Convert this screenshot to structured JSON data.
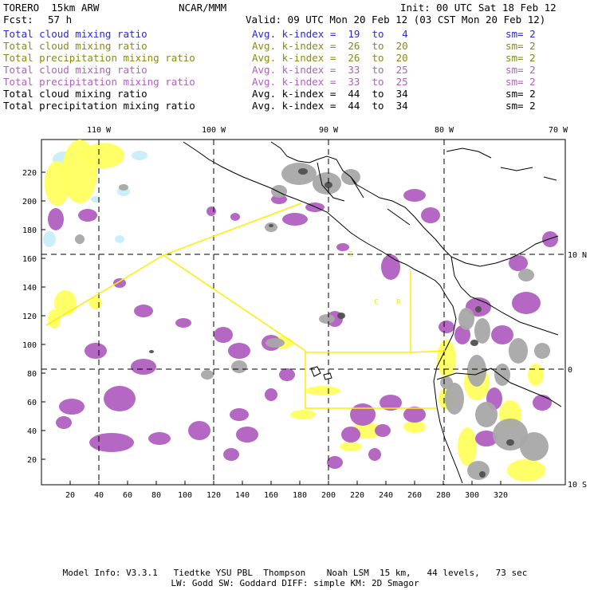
{
  "header": {
    "model": "TORERO  15km ARW",
    "agency": "NCAR/MMM",
    "init": "Init: 00 UTC Sat 18 Feb 12",
    "fcst_label": "Fcst:",
    "fcst_value": "57 h",
    "valid": "Valid: 09 UTC Mon 20 Feb 12 (03 CST Mon 20 Feb 12)"
  },
  "legend": [
    {
      "field": "Total cloud mixing ratio",
      "kindex": "Avg. k-index =  19  to   4",
      "sm": "sm= 2",
      "color": "#2a2ad0"
    },
    {
      "field": "Total cloud mixing ratio",
      "kindex": "Avg. k-index =  26  to  20",
      "sm": "sm= 2",
      "color": "#8a8a10"
    },
    {
      "field": "Total precipitation mixing ratio",
      "kindex": "Avg. k-index =  26  to  20",
      "sm": "sm= 2",
      "color": "#8a8a10"
    },
    {
      "field": "Total cloud mixing ratio",
      "kindex": "Avg. k-index =  33  to  25",
      "sm": "sm= 2",
      "color": "#b060c0"
    },
    {
      "field": "Total precipitation mixing ratio",
      "kindex": "Avg. k-index =  33  to  25",
      "sm": "sm= 2",
      "color": "#b060c0"
    },
    {
      "field": "Total cloud mixing ratio",
      "kindex": "Avg. k-index =  44  to  34",
      "sm": "sm= 2",
      "color": "#000000"
    },
    {
      "field": "Total precipitation mixing ratio",
      "kindex": "Avg. k-index =  44  to  34",
      "sm": "sm= 2",
      "color": "#000000"
    }
  ],
  "map": {
    "lon_labels": [
      "110 W",
      "100 W",
      "90 W",
      "80 W",
      "70 W"
    ],
    "lat_labels": [
      "10 N",
      "0",
      "10 S"
    ],
    "x_ticks": [
      "20",
      "40",
      "60",
      "80",
      "100",
      "120",
      "140",
      "160",
      "180",
      "200",
      "220",
      "240",
      "260",
      "280",
      "300",
      "320"
    ],
    "y_ticks": [
      "20",
      "40",
      "60",
      "80",
      "100",
      "120",
      "140",
      "160",
      "180",
      "200",
      "220"
    ],
    "area_letters": [
      "I",
      "C",
      "R"
    ],
    "colors": {
      "cloud_light": "#c8eef8",
      "yellow": "#ffff60",
      "purple": "#b060c0",
      "gray": "#a8a8a8",
      "dark": "#505050",
      "flight_track": "#ffee00"
    }
  },
  "footer": {
    "line1": "Model Info: V3.3.1   Tiedtke YSU PBL  Thompson    Noah LSM  15 km,   44 levels,   73 sec",
    "line2": "LW: Godd SW: Goddard DIFF: simple KM: 2D Smagor"
  }
}
